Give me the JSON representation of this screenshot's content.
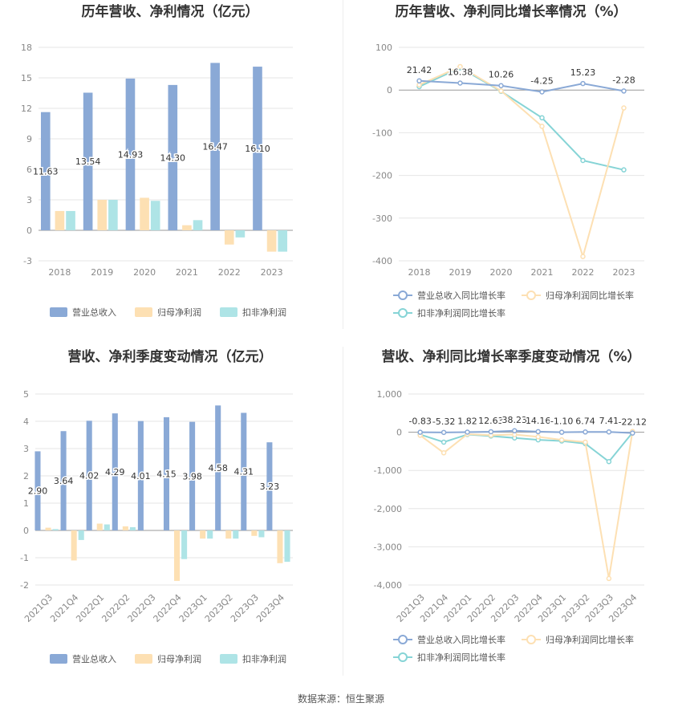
{
  "colors": {
    "revenue": "#8aa9d6",
    "netprofit": "#fde0b3",
    "deducted": "#aee4e6",
    "revenue_line": "#8aa9d6",
    "netprofit_line": "#fde0b3",
    "deducted_line": "#86d4d6"
  },
  "legend_bar": [
    "营业总收入",
    "归母净利润",
    "扣非净利润"
  ],
  "legend_line": [
    "营业总收入同比增长率",
    "归母净利润同比增长率",
    "扣非净利润同比增长率"
  ],
  "footer": "数据来源：恒生聚源",
  "chart_data": [
    {
      "type": "bar",
      "title": "历年营收、净利情况（亿元）",
      "categories": [
        "2018",
        "2019",
        "2020",
        "2021",
        "2022",
        "2023"
      ],
      "ylim": [
        -3,
        18
      ],
      "yticks": [
        -3,
        0,
        3,
        6,
        9,
        12,
        15,
        18
      ],
      "series": [
        {
          "name": "营业总收入",
          "values": [
            11.63,
            13.54,
            14.93,
            14.3,
            16.47,
            16.1
          ],
          "labels": [
            "11.63",
            "13.54",
            "14.93",
            "14.30",
            "16.47",
            "16.10"
          ]
        },
        {
          "name": "归母净利润",
          "values": [
            1.9,
            3.0,
            3.2,
            0.5,
            -1.4,
            -2.1
          ]
        },
        {
          "name": "扣非净利润",
          "values": [
            1.9,
            3.0,
            2.9,
            1.0,
            -0.7,
            -2.1
          ]
        }
      ],
      "legend_position": "bottom"
    },
    {
      "type": "line",
      "title": "历年营收、净利同比增长率情况（%）",
      "categories": [
        "2018",
        "2019",
        "2020",
        "2021",
        "2022",
        "2023"
      ],
      "ylim": [
        -400,
        100
      ],
      "yticks": [
        -400,
        -300,
        -200,
        -100,
        0,
        100
      ],
      "series": [
        {
          "name": "营业总收入同比增长率",
          "values": [
            21.42,
            16.38,
            10.26,
            -4.25,
            15.23,
            -2.28
          ],
          "labels": [
            "21.42",
            "16.38",
            "10.26",
            "-4.25",
            "15.23",
            "-2.28"
          ]
        },
        {
          "name": "归母净利润同比增长率",
          "values": [
            12,
            55,
            -2,
            -85,
            -390,
            -42
          ]
        },
        {
          "name": "扣非净利润同比增长率",
          "values": [
            8,
            52,
            -3,
            -65,
            -165,
            -187
          ]
        }
      ],
      "legend_position": "bottom"
    },
    {
      "type": "bar",
      "title": "营收、净利季度变动情况（亿元）",
      "categories": [
        "2021Q3",
        "2021Q4",
        "2022Q1",
        "2022Q2",
        "2022Q3",
        "2022Q4",
        "2023Q1",
        "2023Q2",
        "2023Q3",
        "2023Q4"
      ],
      "ylim": [
        -2,
        5
      ],
      "yticks": [
        -2,
        -1,
        0,
        1,
        2,
        3,
        4,
        5
      ],
      "series": [
        {
          "name": "营业总收入",
          "values": [
            2.9,
            3.64,
            4.02,
            4.29,
            4.01,
            4.15,
            3.98,
            4.58,
            4.31,
            3.23
          ],
          "labels": [
            "2.90",
            "3.64",
            "4.02",
            "4.29",
            "4.01",
            "4.15",
            "3.98",
            "4.58",
            "4.31",
            "3.23"
          ]
        },
        {
          "name": "归母净利润",
          "values": [
            0.1,
            -1.1,
            0.25,
            0.15,
            0.0,
            -1.85,
            -0.3,
            -0.3,
            -0.2,
            -1.2
          ]
        },
        {
          "name": "扣非净利润",
          "values": [
            0.05,
            -0.35,
            0.22,
            0.12,
            0.0,
            -1.05,
            -0.3,
            -0.3,
            -0.25,
            -1.15
          ]
        }
      ],
      "legend_position": "bottom"
    },
    {
      "type": "line",
      "title": "营收、净利同比增长率季度变动情况（%）",
      "categories": [
        "2021Q3",
        "2021Q4",
        "2022Q1",
        "2022Q2",
        "2022Q3",
        "2022Q4",
        "2023Q1",
        "2023Q2",
        "2023Q3",
        "2023Q4"
      ],
      "ylim": [
        -4000,
        1000
      ],
      "yticks": [
        -4000,
        -3000,
        -2000,
        -1000,
        0,
        1000
      ],
      "ytick_labels": [
        "-4,000",
        "-3,000",
        "-2,000",
        "-1,000",
        "0",
        "1,000"
      ],
      "series": [
        {
          "name": "营业总收入同比增长率",
          "values": [
            -0.83,
            -5.32,
            1.82,
            12.63,
            38.23,
            14.16,
            -1.1,
            6.74,
            7.41,
            -22.12
          ],
          "labels": [
            "-0.83",
            "-5.32",
            "1.82",
            "12.63",
            "38.23",
            "14.16",
            "-1.10",
            "6.74",
            "7.41",
            "-22.12"
          ]
        },
        {
          "name": "归母净利润同比增长率",
          "values": [
            -80,
            -540,
            -50,
            -80,
            -60,
            -120,
            -200,
            -260,
            -3830,
            20
          ]
        },
        {
          "name": "扣非净利润同比增长率",
          "values": [
            -60,
            -260,
            -60,
            -100,
            -150,
            -200,
            -230,
            -300,
            -770,
            -10
          ]
        }
      ],
      "legend_position": "bottom"
    }
  ]
}
